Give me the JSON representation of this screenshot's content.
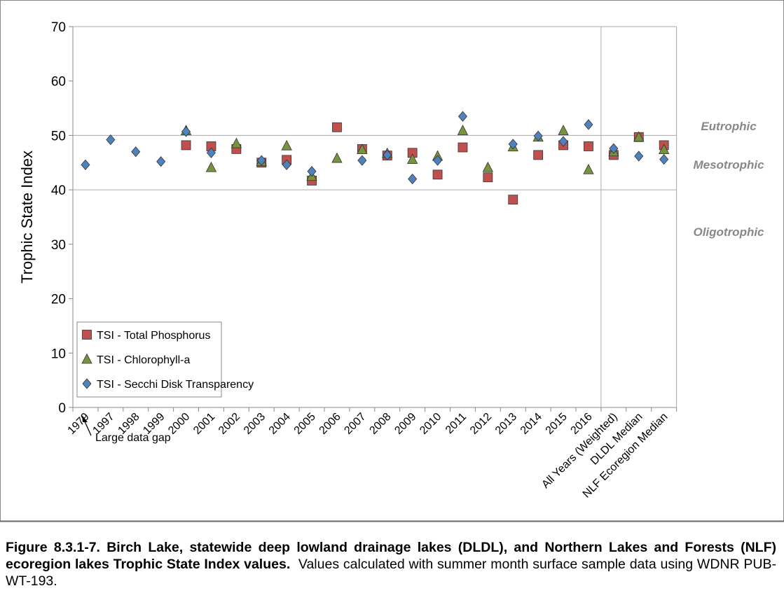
{
  "chart_data": {
    "type": "scatter",
    "y_label": "Trophic State Index",
    "categories": [
      "1979",
      "1997",
      "1998",
      "1999",
      "2000",
      "2001",
      "2002",
      "2003",
      "2004",
      "2005",
      "2006",
      "2007",
      "2008",
      "2009",
      "2010",
      "2011",
      "2012",
      "2013",
      "2014",
      "2015",
      "2016",
      "All Years (Weighted)",
      "DLDL Median",
      "NLF Ecoregion Median"
    ],
    "series": [
      {
        "name": "TSI - Total Phosphorus",
        "color": "#c0504d",
        "marker": "square",
        "values": [
          null,
          null,
          null,
          null,
          48.2,
          48.0,
          47.5,
          45.0,
          45.5,
          41.7,
          51.5,
          47.5,
          46.3,
          46.8,
          42.8,
          47.8,
          42.3,
          38.2,
          46.4,
          48.2,
          48.0,
          46.4,
          49.7,
          48.2
        ]
      },
      {
        "name": "TSI - Chlorophyll-a",
        "color": "#77933c",
        "marker": "triangle",
        "values": [
          null,
          null,
          null,
          null,
          50.9,
          44.1,
          48.5,
          45.2,
          48.1,
          42.5,
          45.8,
          47.4,
          46.7,
          45.6,
          46.2,
          50.9,
          44.1,
          47.9,
          49.7,
          50.9,
          43.7,
          47.0,
          49.7,
          47.4
        ]
      },
      {
        "name": "TSI - Secchi Disk Transparency",
        "color": "#4f81bd",
        "marker": "diamond",
        "values": [
          44.6,
          49.2,
          47.0,
          45.2,
          50.7,
          46.8,
          null,
          45.4,
          44.6,
          43.4,
          null,
          45.4,
          46.4,
          42.0,
          45.4,
          53.5,
          null,
          48.4,
          49.9,
          48.9,
          52.0,
          47.6,
          46.2,
          45.6
        ]
      }
    ],
    "ylim": [
      0,
      70
    ],
    "yticks": [
      0,
      10,
      20,
      30,
      40,
      50,
      60,
      70
    ],
    "zone_lines": [
      40,
      50
    ],
    "zones": [
      "Eutrophic",
      "Mesotrophic",
      "Oligotrophic"
    ],
    "annotation": "Large data gap",
    "legend": "lower left"
  },
  "caption": {
    "label": "Figure 8.3.1-7.  Birch Lake, statewide deep lowland drainage lakes (DLDL), and Northern Lakes and Forests (NLF) ecoregion lakes Trophic State Index values.",
    "text": "Values calculated with summer month surface sample data using WDNR PUB-WT-193."
  }
}
